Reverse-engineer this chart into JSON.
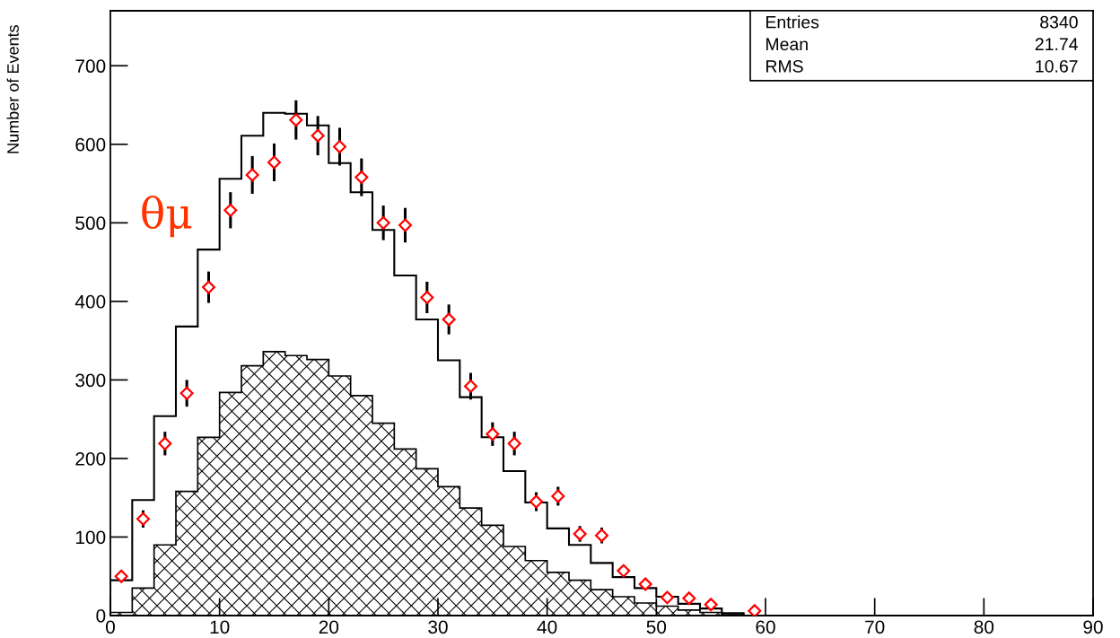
{
  "chart_data": {
    "type": "histogram",
    "ylabel": "Number of Events",
    "bins": [
      0,
      2,
      4,
      6,
      8,
      10,
      12,
      14,
      16,
      18,
      20,
      22,
      24,
      26,
      28,
      30,
      32,
      34,
      36,
      38,
      40,
      42,
      44,
      46,
      48,
      50,
      52,
      54,
      56,
      58,
      60,
      62,
      64,
      66,
      68,
      70,
      72,
      74,
      76,
      78,
      80,
      82,
      84,
      86,
      88,
      90
    ],
    "series": [
      {
        "color": "#000000",
        "values": [
          45,
          147,
          254,
          368,
          466,
          556,
          611,
          640,
          639,
          624,
          576,
          539,
          491,
          433,
          377,
          325,
          278,
          227,
          184,
          144,
          111,
          90,
          67,
          49,
          35,
          24,
          15,
          9,
          3,
          0,
          0,
          0,
          0,
          0,
          0,
          0,
          0,
          0,
          0,
          0,
          0,
          0,
          0,
          0,
          0
        ]
      },
      {
        "color": "#000000",
        "values": [
          4,
          35,
          90,
          158,
          227,
          284,
          318,
          336,
          331,
          326,
          305,
          280,
          245,
          212,
          187,
          164,
          137,
          115,
          88,
          70,
          55,
          45,
          33,
          24,
          16,
          12,
          7,
          4,
          1,
          0,
          0,
          0,
          0,
          0,
          0,
          0,
          0,
          0,
          0,
          0,
          0,
          0,
          0,
          0,
          0
        ]
      },
      {
        "type": "scatter",
        "color": "#ff0000",
        "marker": "diamond",
        "x": [
          1,
          3,
          5,
          7,
          9,
          11,
          13,
          15,
          17,
          19,
          21,
          23,
          25,
          27,
          29,
          31,
          33,
          35,
          37,
          39,
          41,
          43,
          45,
          47,
          49,
          51,
          53,
          55,
          59
        ],
        "values": [
          50,
          123,
          219,
          283,
          418,
          516,
          561,
          577,
          631,
          611,
          597,
          558,
          500,
          497,
          405,
          377,
          292,
          231,
          219,
          145,
          152,
          104,
          102,
          57,
          40,
          23,
          22,
          14,
          6
        ],
        "errors": [
          null,
          11,
          15,
          17,
          20,
          23,
          24,
          24,
          25,
          25,
          24,
          24,
          22,
          22,
          20,
          19,
          17,
          15,
          15,
          12,
          12,
          10,
          10,
          null,
          null,
          null,
          null,
          null,
          null
        ]
      }
    ],
    "xlim": [
      0,
      90
    ],
    "xticks": [
      0,
      10,
      20,
      30,
      40,
      50,
      60,
      70,
      80,
      90
    ],
    "ylim": [
      0,
      770
    ],
    "yticks": [
      0,
      100,
      200,
      300,
      400,
      500,
      600,
      700
    ],
    "grid": false,
    "legend": false,
    "annotations": [
      "θμ",
      "Entries",
      "8340",
      "Mean",
      "21.74",
      "RMS",
      "10.67"
    ]
  }
}
